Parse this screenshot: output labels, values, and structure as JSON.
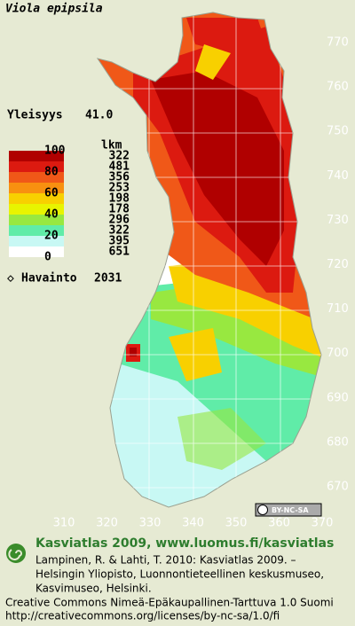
{
  "title": "Viola epipsila",
  "frequency": {
    "label": "Yleisyys",
    "value": "41.0"
  },
  "legend": {
    "percent_labels": [
      "100",
      "80",
      "60",
      "40",
      "20",
      "0"
    ],
    "count_header": "lkm",
    "colors": [
      "#b00000",
      "#dc1a10",
      "#f05818",
      "#f89010",
      "#f8d000",
      "#e8f400",
      "#98e840",
      "#60eca8",
      "#c8f8f4",
      "#ffffff"
    ],
    "counts": [
      "322",
      "481",
      "356",
      "253",
      "198",
      "178",
      "296",
      "322",
      "395",
      "651"
    ]
  },
  "observations": {
    "label": "Havainto",
    "value": "2031"
  },
  "axis_right": [
    "770",
    "760",
    "750",
    "740",
    "730",
    "720",
    "710",
    "700",
    "690",
    "680",
    "670"
  ],
  "axis_bottom": [
    "310",
    "320",
    "330",
    "340",
    "350",
    "360",
    "370"
  ],
  "license_badge": "BY-NC-SA",
  "footer": {
    "heading": "Kasviatlas 2009, www.luomus.fi/kasviatlas",
    "citation": [
      "Lampinen, R. & Lahti, T. 2010: Kasviatlas 2009. –",
      "Helsingin Yliopisto, Luonnontieteellinen keskusmuseo,",
      "Kasvimuseo, Helsinki."
    ],
    "license": "Creative Commons Nimeä-Epäkaupallinen-Tarttuva 1.0 Suomi",
    "url": "http://creativecommons.org/licenses/by-nc-sa/1.0/fi"
  }
}
